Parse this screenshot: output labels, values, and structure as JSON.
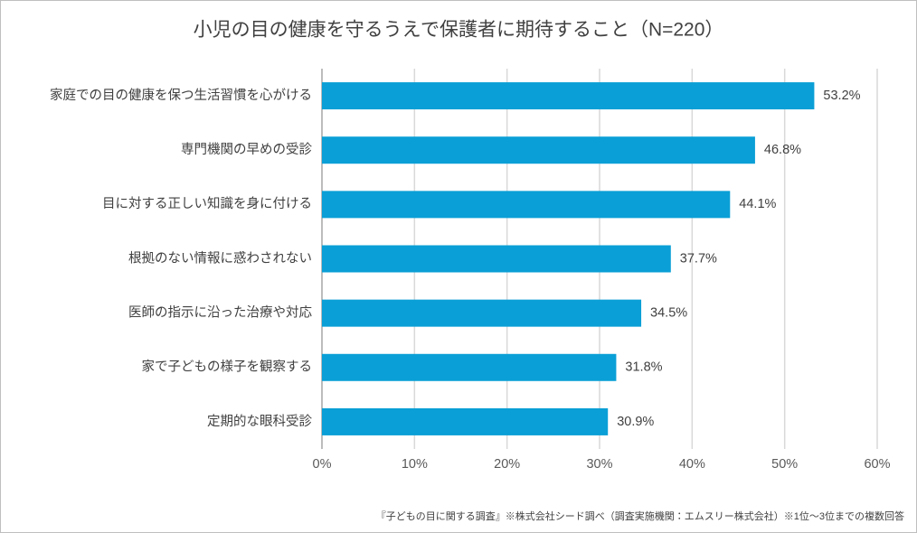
{
  "chart_data": {
    "type": "bar",
    "orientation": "horizontal",
    "title": "小児の目の健康を守るうえで保護者に期待すること（N=220）",
    "categories": [
      "家庭での目の健康を保つ生活習慣を心がける",
      "専門機関の早めの受診",
      "目に対する正しい知識を身に付ける",
      "根拠のない情報に惑わされない",
      "医師の指示に沿った治療や対応",
      "家で子どもの様子を観察する",
      "定期的な眼科受診"
    ],
    "values": [
      53.2,
      46.8,
      44.1,
      37.7,
      34.5,
      31.8,
      30.9
    ],
    "value_labels": [
      "53.2%",
      "46.8%",
      "44.1%",
      "37.7%",
      "34.5%",
      "31.8%",
      "30.9%"
    ],
    "color": "#0a9fd6",
    "xlim": [
      0,
      60
    ],
    "xticks": [
      {
        "value": 0,
        "label": "0%"
      },
      {
        "value": 10,
        "label": "10%"
      },
      {
        "value": 20,
        "label": "20%"
      },
      {
        "value": 30,
        "label": "30%"
      },
      {
        "value": 40,
        "label": "40%"
      },
      {
        "value": 50,
        "label": "50%"
      },
      {
        "value": 60,
        "label": "60%"
      }
    ],
    "grid": true,
    "footnote": "『子どもの目に関する調査』※株式会社シード調べ（調査実施機関：エムスリー株式会社）※1位～3位までの複数回答"
  }
}
